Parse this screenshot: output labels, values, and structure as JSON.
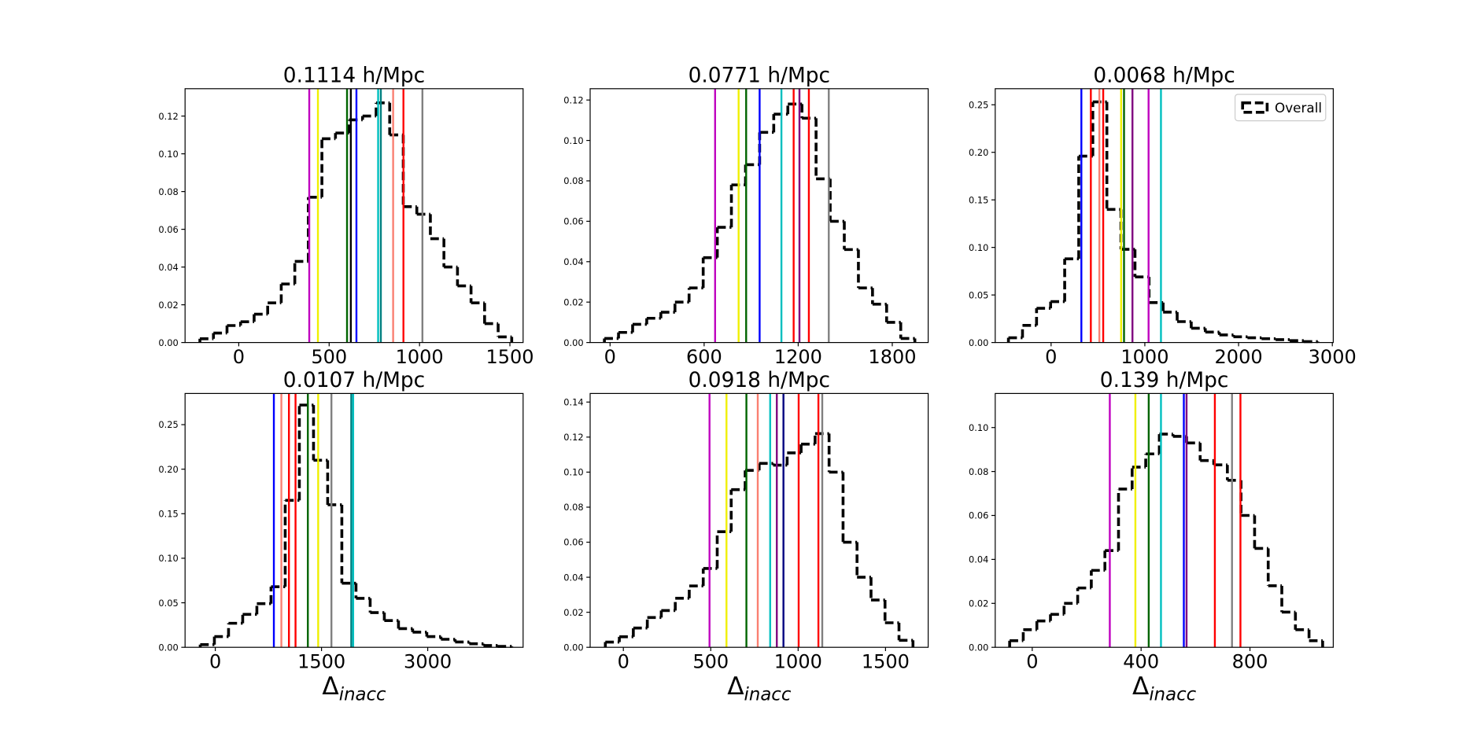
{
  "chart_data": [
    {
      "type": "histogram",
      "title": "0.1114 h/Mpc",
      "xlim": [
        -297,
        1573
      ],
      "ylim": [
        0,
        0.1345
      ],
      "xticks": [
        0,
        500,
        1000,
        1500
      ],
      "yticks": [
        {
          "value": 0,
          "label": "0.00"
        },
        {
          "value": 0.02,
          "label": "0.02"
        },
        {
          "value": 0.04,
          "label": "0.04"
        },
        {
          "value": 0.06,
          "label": "0.06"
        },
        {
          "value": 0.08,
          "label": "0.08"
        },
        {
          "value": 0.1,
          "label": "0.10"
        },
        {
          "value": 0.12,
          "label": "0.12"
        }
      ],
      "series": [
        {
          "color": "#000000",
          "linestyle": "dashed",
          "bins": [
            -215,
            -140,
            -65,
            10,
            85,
            160,
            235,
            310,
            385,
            460,
            535,
            610,
            685,
            760,
            835,
            910,
            985,
            1060,
            1135,
            1210,
            1285,
            1360,
            1435,
            1510
          ],
          "values": [
            0.002,
            0.005,
            0.009,
            0.011,
            0.015,
            0.021,
            0.031,
            0.043,
            0.077,
            0.108,
            0.111,
            0.118,
            0.12,
            0.127,
            0.11,
            0.072,
            0.068,
            0.055,
            0.04,
            0.03,
            0.021,
            0.01,
            0.003
          ]
        }
      ],
      "vlines": [
        {
          "x": 390,
          "color": "#bf00bf"
        },
        {
          "x": 438,
          "color": "#f0f000"
        },
        {
          "x": 599,
          "color": "#006400"
        },
        {
          "x": 620,
          "color": "#000000"
        },
        {
          "x": 651,
          "color": "#0000ff"
        },
        {
          "x": 771,
          "color": "#00bfbf"
        },
        {
          "x": 786,
          "color": "#008080"
        },
        {
          "x": 854,
          "color": "#fa8072"
        },
        {
          "x": 911,
          "color": "#ff0000"
        },
        {
          "x": 1016,
          "color": "#808080"
        }
      ]
    },
    {
      "type": "histogram",
      "title": "0.0771 h/Mpc",
      "xlim": [
        -127,
        2029
      ],
      "ylim": [
        0,
        0.1256
      ],
      "xticks": [
        0,
        600,
        1200,
        1800
      ],
      "yticks": [
        {
          "value": 0,
          "label": "0.00"
        },
        {
          "value": 0.02,
          "label": "0.02"
        },
        {
          "value": 0.04,
          "label": "0.04"
        },
        {
          "value": 0.06,
          "label": "0.06"
        },
        {
          "value": 0.08,
          "label": "0.08"
        },
        {
          "value": 0.1,
          "label": "0.10"
        },
        {
          "value": 0.12,
          "label": "0.12"
        }
      ],
      "series": [
        {
          "color": "#000000",
          "linestyle": "dashed",
          "bins": [
            -36,
            54,
            144,
            234,
            324,
            414,
            504,
            594,
            684,
            774,
            864,
            954,
            1044,
            1134,
            1224,
            1314,
            1404,
            1494,
            1584,
            1674,
            1764,
            1854,
            1944
          ],
          "values": [
            0.002,
            0.005,
            0.009,
            0.012,
            0.015,
            0.02,
            0.027,
            0.042,
            0.057,
            0.078,
            0.088,
            0.104,
            0.113,
            0.118,
            0.111,
            0.081,
            0.06,
            0.046,
            0.027,
            0.019,
            0.01,
            0.002
          ]
        }
      ],
      "vlines": [
        {
          "x": 670,
          "color": "#bf00bf"
        },
        {
          "x": 820,
          "color": "#f0f000"
        },
        {
          "x": 868,
          "color": "#006400"
        },
        {
          "x": 954,
          "color": "#0000ff"
        },
        {
          "x": 1093,
          "color": "#00bfbf"
        },
        {
          "x": 1171,
          "color": "#ff0000"
        },
        {
          "x": 1208,
          "color": "#800080"
        },
        {
          "x": 1268,
          "color": "#ff0000"
        },
        {
          "x": 1395,
          "color": "#808080"
        }
      ]
    },
    {
      "type": "histogram",
      "title": "0.0068 h/Mpc",
      "xlim": [
        -596,
        3010
      ],
      "ylim": [
        0,
        0.2669
      ],
      "xticks": [
        0,
        1000,
        2000,
        3000
      ],
      "yticks": [
        {
          "value": 0,
          "label": "0.00"
        },
        {
          "value": 0.05,
          "label": "0.05"
        },
        {
          "value": 0.1,
          "label": "0.10"
        },
        {
          "value": 0.15,
          "label": "0.15"
        },
        {
          "value": 0.2,
          "label": "0.20"
        },
        {
          "value": 0.25,
          "label": "0.25"
        }
      ],
      "legend": "upper right",
      "series": [
        {
          "name": "Overall",
          "color": "#000000",
          "linestyle": "dashed",
          "bins": [
            -455,
            -305,
            -155,
            -5,
            145,
            295,
            445,
            595,
            745,
            895,
            1045,
            1195,
            1345,
            1495,
            1645,
            1795,
            1945,
            2095,
            2245,
            2395,
            2545,
            2695,
            2845
          ],
          "values": [
            0.005,
            0.018,
            0.036,
            0.043,
            0.088,
            0.196,
            0.253,
            0.14,
            0.098,
            0.069,
            0.042,
            0.032,
            0.022,
            0.015,
            0.011,
            0.008,
            0.006,
            0.005,
            0.004,
            0.003,
            0.002,
            0.001
          ]
        }
      ],
      "vlines": [
        {
          "x": 323,
          "color": "#0000ff"
        },
        {
          "x": 424,
          "color": "#ff0000"
        },
        {
          "x": 515,
          "color": "#fa8072"
        },
        {
          "x": 556,
          "color": "#ff0000"
        },
        {
          "x": 747,
          "color": "#f0f000"
        },
        {
          "x": 778,
          "color": "#006400"
        },
        {
          "x": 868,
          "color": "#800080"
        },
        {
          "x": 1040,
          "color": "#bf00bf"
        },
        {
          "x": 1172,
          "color": "#00bfbf"
        }
      ]
    },
    {
      "type": "histogram",
      "title": "0.0107 h/Mpc",
      "xlim": [
        -427,
        4347
      ],
      "ylim": [
        0,
        0.285
      ],
      "xticks": [
        0,
        1500,
        3000
      ],
      "yticks": [
        {
          "value": 0,
          "label": "0.00"
        },
        {
          "value": 0.05,
          "label": "0.05"
        },
        {
          "value": 0.1,
          "label": "0.10"
        },
        {
          "value": 0.15,
          "label": "0.15"
        },
        {
          "value": 0.2,
          "label": "0.20"
        },
        {
          "value": 0.25,
          "label": "0.25"
        }
      ],
      "xlabel": "Δ",
      "xlabel_sub": "inacc",
      "series": [
        {
          "color": "#000000",
          "linestyle": "dashed",
          "bins": [
            -213,
            -13,
            187,
            387,
            587,
            787,
            987,
            1187,
            1387,
            1587,
            1787,
            1987,
            2187,
            2387,
            2587,
            2787,
            2987,
            3187,
            3387,
            3587,
            3787,
            3987,
            4187
          ],
          "values": [
            0.003,
            0.012,
            0.027,
            0.037,
            0.049,
            0.068,
            0.165,
            0.272,
            0.21,
            0.16,
            0.072,
            0.055,
            0.039,
            0.03,
            0.021,
            0.017,
            0.012,
            0.009,
            0.006,
            0.004,
            0.002,
            0.001
          ]
        }
      ],
      "vlines": [
        {
          "x": 827,
          "color": "#0000ff"
        },
        {
          "x": 933,
          "color": "#fa8072"
        },
        {
          "x": 1040,
          "color": "#ff0000"
        },
        {
          "x": 1133,
          "color": "#ff0000"
        },
        {
          "x": 1307,
          "color": "#006400"
        },
        {
          "x": 1453,
          "color": "#f0f000"
        },
        {
          "x": 1640,
          "color": "#808080"
        },
        {
          "x": 1920,
          "color": "#008080"
        },
        {
          "x": 1947,
          "color": "#00bfbf"
        }
      ]
    },
    {
      "type": "histogram",
      "title": "0.0918 h/Mpc",
      "xlim": [
        -190,
        1744
      ],
      "ylim": [
        0,
        0.1449
      ],
      "xticks": [
        0,
        500,
        1000,
        1500
      ],
      "yticks": [
        {
          "value": 0,
          "label": "0.00"
        },
        {
          "value": 0.02,
          "label": "0.02"
        },
        {
          "value": 0.04,
          "label": "0.04"
        },
        {
          "value": 0.06,
          "label": "0.06"
        },
        {
          "value": 0.08,
          "label": "0.08"
        },
        {
          "value": 0.1,
          "label": "0.10"
        },
        {
          "value": 0.12,
          "label": "0.12"
        },
        {
          "value": 0.14,
          "label": "0.14"
        }
      ],
      "xlabel": "Δ",
      "xlabel_sub": "inacc",
      "series": [
        {
          "color": "#000000",
          "linestyle": "dashed",
          "bins": [
            -103,
            -23,
            57,
            137,
            217,
            297,
            377,
            457,
            537,
            617,
            697,
            777,
            857,
            937,
            1017,
            1097,
            1177,
            1257,
            1337,
            1417,
            1497,
            1577,
            1657
          ],
          "values": [
            0.003,
            0.006,
            0.011,
            0.017,
            0.021,
            0.028,
            0.035,
            0.045,
            0.066,
            0.09,
            0.101,
            0.105,
            0.104,
            0.111,
            0.116,
            0.122,
            0.1,
            0.06,
            0.04,
            0.027,
            0.014,
            0.004
          ]
        }
      ],
      "vlines": [
        {
          "x": 493,
          "color": "#bf00bf"
        },
        {
          "x": 590,
          "color": "#f0f000"
        },
        {
          "x": 704,
          "color": "#006400"
        },
        {
          "x": 769,
          "color": "#fa8072"
        },
        {
          "x": 840,
          "color": "#00bfbf"
        },
        {
          "x": 878,
          "color": "#800080"
        },
        {
          "x": 916,
          "color": "#000080"
        },
        {
          "x": 1003,
          "color": "#ff0000"
        },
        {
          "x": 1116,
          "color": "#ff0000"
        },
        {
          "x": 1138,
          "color": "#808080"
        }
      ]
    },
    {
      "type": "histogram",
      "title": "0.139 h/Mpc",
      "xlim": [
        -136,
        1106
      ],
      "ylim": [
        0,
        0.1155
      ],
      "xticks": [
        0,
        400,
        800
      ],
      "yticks": [
        {
          "value": 0,
          "label": "0.00"
        },
        {
          "value": 0.02,
          "label": "0.02"
        },
        {
          "value": 0.04,
          "label": "0.04"
        },
        {
          "value": 0.06,
          "label": "0.06"
        },
        {
          "value": 0.08,
          "label": "0.08"
        },
        {
          "value": 0.1,
          "label": "0.10"
        }
      ],
      "xlabel": "Δ",
      "xlabel_sub": "inacc",
      "series": [
        {
          "color": "#000000",
          "linestyle": "dashed",
          "bins": [
            -83,
            -33,
            17,
            67,
            117,
            167,
            217,
            267,
            317,
            367,
            417,
            467,
            517,
            567,
            617,
            667,
            717,
            767,
            817,
            867,
            917,
            967,
            1017,
            1067
          ],
          "values": [
            0.003,
            0.008,
            0.012,
            0.015,
            0.02,
            0.027,
            0.035,
            0.044,
            0.072,
            0.082,
            0.088,
            0.097,
            0.096,
            0.093,
            0.085,
            0.083,
            0.076,
            0.06,
            0.045,
            0.028,
            0.016,
            0.008,
            0.003
          ]
        }
      ],
      "vlines": [
        {
          "x": 285,
          "color": "#bf00bf"
        },
        {
          "x": 379,
          "color": "#f0f000"
        },
        {
          "x": 428,
          "color": "#006400"
        },
        {
          "x": 473,
          "color": "#00bfbf"
        },
        {
          "x": 557,
          "color": "#0000ff"
        },
        {
          "x": 567,
          "color": "#800080"
        },
        {
          "x": 671,
          "color": "#ff0000"
        },
        {
          "x": 734,
          "color": "#808080"
        },
        {
          "x": 765,
          "color": "#ff0000"
        }
      ]
    }
  ]
}
